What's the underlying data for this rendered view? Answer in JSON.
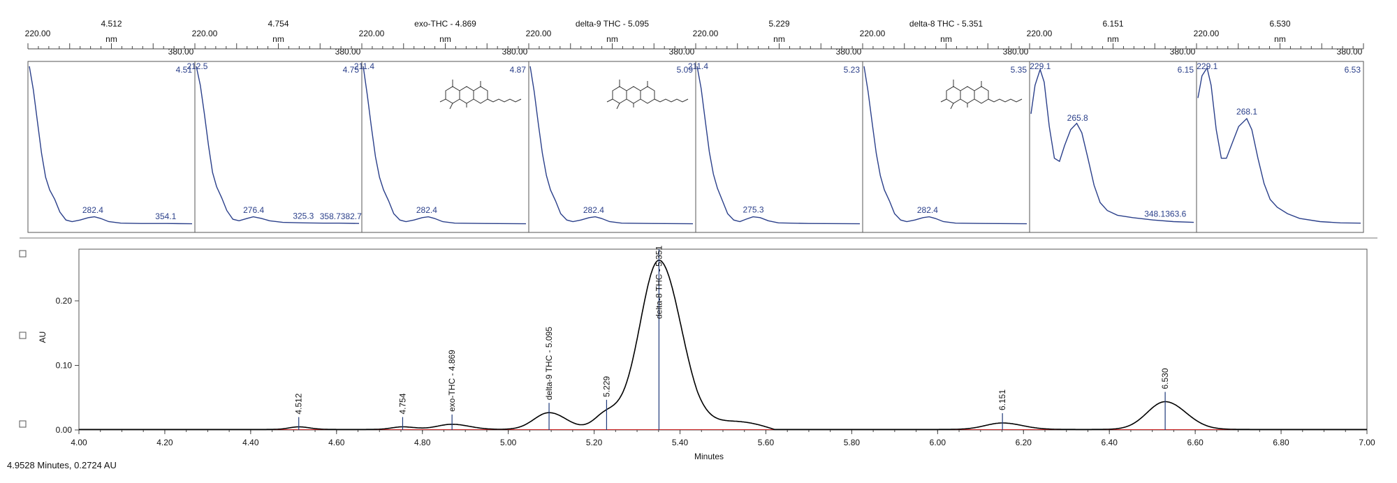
{
  "status_readout": "4.9528 Minutes, 0.2724 AU",
  "colors": {
    "trace": "#000000",
    "spectrum": "#2a3f8a",
    "peak_marker": "#1f3a7a",
    "baseline": "#cc2222",
    "axis": "#444444"
  },
  "chart_data": [
    {
      "type": "line",
      "subtype": "uv-spectra-strip",
      "panels": [
        {
          "title": "4.512",
          "unit": "nm",
          "xmin_label": "220.00",
          "xmax_label": "380.00",
          "rt_label": "4.51",
          "peak_labels": [
            {
              "text": "282.4",
              "nm": 282.4
            },
            {
              "text": "354.1",
              "nm": 354.1
            }
          ],
          "spectrum": [
            [
              220,
              1.0
            ],
            [
              224,
              0.85
            ],
            [
              228,
              0.65
            ],
            [
              232,
              0.45
            ],
            [
              236,
              0.3
            ],
            [
              240,
              0.22
            ],
            [
              245,
              0.16
            ],
            [
              250,
              0.08
            ],
            [
              256,
              0.03
            ],
            [
              262,
              0.02
            ],
            [
              270,
              0.03
            ],
            [
              278,
              0.045
            ],
            [
              284,
              0.05
            ],
            [
              290,
              0.04
            ],
            [
              298,
              0.02
            ],
            [
              310,
              0.01
            ],
            [
              330,
              0.008
            ],
            [
              355,
              0.008
            ],
            [
              380,
              0.006
            ]
          ],
          "has_structure": false
        },
        {
          "title": "4.754",
          "unit": "nm",
          "xmin_label": "220.00",
          "xmax_label": "380.00",
          "rt_label": "4.75",
          "peak_labels": [
            {
              "text": "212.5",
              "nm": 221
            },
            {
              "text": "276.4",
              "nm": 276.4
            },
            {
              "text": "325.3",
              "nm": 325.3
            },
            {
              "text": "358.7382.7",
              "nm": 362
            }
          ],
          "spectrum": [
            [
              220,
              1.0
            ],
            [
              224,
              0.88
            ],
            [
              228,
              0.7
            ],
            [
              232,
              0.5
            ],
            [
              236,
              0.33
            ],
            [
              240,
              0.24
            ],
            [
              245,
              0.17
            ],
            [
              250,
              0.09
            ],
            [
              256,
              0.035
            ],
            [
              262,
              0.025
            ],
            [
              270,
              0.04
            ],
            [
              276,
              0.05
            ],
            [
              284,
              0.04
            ],
            [
              292,
              0.025
            ],
            [
              305,
              0.015
            ],
            [
              325,
              0.012
            ],
            [
              345,
              0.01
            ],
            [
              360,
              0.01
            ],
            [
              380,
              0.008
            ]
          ],
          "has_structure": false
        },
        {
          "title": "exo-THC - 4.869",
          "unit": "nm",
          "xmin_label": "220.00",
          "xmax_label": "380.00",
          "rt_label": "4.87",
          "peak_labels": [
            {
              "text": "211.4",
              "nm": 221
            },
            {
              "text": "282.4",
              "nm": 282.4
            }
          ],
          "spectrum": [
            [
              220,
              1.0
            ],
            [
              224,
              0.82
            ],
            [
              228,
              0.62
            ],
            [
              232,
              0.43
            ],
            [
              236,
              0.3
            ],
            [
              240,
              0.22
            ],
            [
              245,
              0.15
            ],
            [
              250,
              0.07
            ],
            [
              256,
              0.03
            ],
            [
              262,
              0.02
            ],
            [
              270,
              0.03
            ],
            [
              278,
              0.045
            ],
            [
              284,
              0.05
            ],
            [
              290,
              0.04
            ],
            [
              298,
              0.02
            ],
            [
              310,
              0.01
            ],
            [
              340,
              0.008
            ],
            [
              380,
              0.006
            ]
          ],
          "has_structure": true
        },
        {
          "title": "delta-9 THC - 5.095",
          "unit": "nm",
          "xmin_label": "220.00",
          "xmax_label": "380.00",
          "rt_label": "5.09",
          "peak_labels": [
            {
              "text": "282.4",
              "nm": 282.4
            }
          ],
          "spectrum": [
            [
              220,
              1.0
            ],
            [
              224,
              0.84
            ],
            [
              228,
              0.64
            ],
            [
              232,
              0.45
            ],
            [
              236,
              0.31
            ],
            [
              240,
              0.22
            ],
            [
              245,
              0.15
            ],
            [
              250,
              0.07
            ],
            [
              256,
              0.03
            ],
            [
              262,
              0.02
            ],
            [
              270,
              0.03
            ],
            [
              278,
              0.045
            ],
            [
              284,
              0.05
            ],
            [
              290,
              0.04
            ],
            [
              298,
              0.02
            ],
            [
              310,
              0.01
            ],
            [
              340,
              0.008
            ],
            [
              380,
              0.006
            ]
          ],
          "has_structure": true
        },
        {
          "title": "5.229",
          "unit": "nm",
          "xmin_label": "220.00",
          "xmax_label": "380.00",
          "rt_label": "5.23",
          "peak_labels": [
            {
              "text": "211.4",
              "nm": 221
            },
            {
              "text": "275.3",
              "nm": 275.3
            }
          ],
          "spectrum": [
            [
              220,
              1.0
            ],
            [
              224,
              0.86
            ],
            [
              228,
              0.66
            ],
            [
              232,
              0.46
            ],
            [
              236,
              0.32
            ],
            [
              240,
              0.23
            ],
            [
              245,
              0.15
            ],
            [
              250,
              0.07
            ],
            [
              256,
              0.03
            ],
            [
              262,
              0.02
            ],
            [
              268,
              0.035
            ],
            [
              275,
              0.05
            ],
            [
              282,
              0.045
            ],
            [
              290,
              0.025
            ],
            [
              300,
              0.012
            ],
            [
              330,
              0.008
            ],
            [
              380,
              0.006
            ]
          ],
          "has_structure": false
        },
        {
          "title": "delta-8 THC - 5.351",
          "unit": "nm",
          "xmin_label": "220.00",
          "xmax_label": "380.00",
          "rt_label": "5.35",
          "peak_labels": [
            {
              "text": "282.4",
              "nm": 282.4
            }
          ],
          "spectrum": [
            [
              220,
              1.0
            ],
            [
              224,
              0.84
            ],
            [
              228,
              0.64
            ],
            [
              232,
              0.45
            ],
            [
              236,
              0.31
            ],
            [
              240,
              0.22
            ],
            [
              245,
              0.15
            ],
            [
              250,
              0.07
            ],
            [
              256,
              0.03
            ],
            [
              262,
              0.02
            ],
            [
              270,
              0.03
            ],
            [
              278,
              0.045
            ],
            [
              284,
              0.05
            ],
            [
              290,
              0.04
            ],
            [
              298,
              0.02
            ],
            [
              310,
              0.01
            ],
            [
              340,
              0.008
            ],
            [
              380,
              0.006
            ]
          ],
          "has_structure": true
        },
        {
          "title": "6.151",
          "unit": "nm",
          "xmin_label": "220.00",
          "xmax_label": "380.00",
          "rt_label": "6.15",
          "peak_labels": [
            {
              "text": "229.1",
              "nm": 229.1
            },
            {
              "text": "265.8",
              "nm": 265.8
            },
            {
              "text": "348.1363.6",
              "nm": 352
            }
          ],
          "spectrum": [
            [
              220,
              0.7
            ],
            [
              224,
              0.88
            ],
            [
              229,
              0.98
            ],
            [
              233,
              0.9
            ],
            [
              238,
              0.62
            ],
            [
              243,
              0.42
            ],
            [
              248,
              0.4
            ],
            [
              253,
              0.5
            ],
            [
              259,
              0.6
            ],
            [
              265,
              0.64
            ],
            [
              270,
              0.58
            ],
            [
              276,
              0.42
            ],
            [
              282,
              0.25
            ],
            [
              288,
              0.14
            ],
            [
              295,
              0.09
            ],
            [
              305,
              0.06
            ],
            [
              320,
              0.045
            ],
            [
              340,
              0.03
            ],
            [
              360,
              0.02
            ],
            [
              380,
              0.015
            ]
          ],
          "has_structure": false
        },
        {
          "title": "6.530",
          "unit": "nm",
          "xmin_label": "220.00",
          "xmax_label": "380.00",
          "rt_label": "6.53",
          "peak_labels": [
            {
              "text": "229.1",
              "nm": 229.1
            },
            {
              "text": "268.1",
              "nm": 268.1
            }
          ],
          "spectrum": [
            [
              220,
              0.8
            ],
            [
              224,
              0.94
            ],
            [
              229,
              0.99
            ],
            [
              233,
              0.88
            ],
            [
              238,
              0.6
            ],
            [
              243,
              0.42
            ],
            [
              248,
              0.42
            ],
            [
              254,
              0.52
            ],
            [
              260,
              0.62
            ],
            [
              268,
              0.67
            ],
            [
              273,
              0.6
            ],
            [
              279,
              0.42
            ],
            [
              285,
              0.26
            ],
            [
              291,
              0.16
            ],
            [
              298,
              0.11
            ],
            [
              308,
              0.07
            ],
            [
              320,
              0.04
            ],
            [
              340,
              0.02
            ],
            [
              360,
              0.012
            ],
            [
              380,
              0.01
            ]
          ],
          "has_structure": false
        }
      ]
    },
    {
      "type": "line",
      "subtype": "chromatogram",
      "xlabel": "Minutes",
      "ylabel": "AU",
      "xlim": [
        4.0,
        7.0
      ],
      "ylim": [
        0.0,
        0.28
      ],
      "xticks": [
        "4.00",
        "4.20",
        "4.40",
        "4.60",
        "4.80",
        "5.00",
        "5.20",
        "5.40",
        "5.60",
        "5.80",
        "6.00",
        "6.20",
        "6.40",
        "6.60",
        "6.80",
        "7.00"
      ],
      "xtick_values": [
        4.0,
        4.2,
        4.4,
        4.6,
        4.8,
        5.0,
        5.2,
        5.4,
        5.6,
        5.8,
        6.0,
        6.2,
        6.4,
        6.6,
        6.8,
        7.0
      ],
      "yticks": [
        "0.00",
        "0.10",
        "0.20"
      ],
      "ytick_values": [
        0.0,
        0.1,
        0.2
      ],
      "peaks": [
        {
          "label": "4.512",
          "rt": 4.512,
          "height": 0.004,
          "width": 0.022
        },
        {
          "label": "4.754",
          "rt": 4.754,
          "height": 0.004,
          "width": 0.025
        },
        {
          "label": "exo-THC - 4.869",
          "rt": 4.869,
          "height": 0.008,
          "width": 0.035
        },
        {
          "label": "delta-9 THC - 5.095",
          "rt": 5.095,
          "height": 0.026,
          "width": 0.035
        },
        {
          "label": "5.229",
          "rt": 5.229,
          "height": 0.024,
          "width": 0.028
        },
        {
          "label": "delta-8 THC - 5.351",
          "rt": 5.351,
          "height": 0.262,
          "width": 0.045
        },
        {
          "label": "6.151",
          "rt": 6.151,
          "height": 0.01,
          "width": 0.04
        },
        {
          "label": "6.530",
          "rt": 6.53,
          "height": 0.043,
          "width": 0.042
        }
      ],
      "tail": {
        "start": 5.44,
        "end": 5.62,
        "level": 0.012
      }
    }
  ]
}
